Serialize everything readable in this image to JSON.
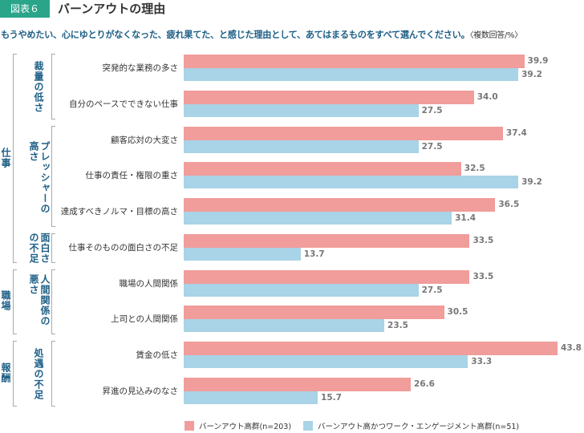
{
  "header": {
    "badge": "図表６",
    "title": "バーンアウトの理由"
  },
  "question": {
    "text": "もうやめたい、心にゆとりがなくなった、疲れ果てた、と感じた理由として、あてはまるものをすべて選んでください。",
    "note": "〈複数回答/%〉"
  },
  "colors": {
    "burnout": "#f09d9b",
    "engaged": "#a9d3e6",
    "label": "#1d5f86"
  },
  "outer_groups": [
    {
      "label": "仕事"
    },
    {
      "label": "職場"
    },
    {
      "label": "報酬"
    }
  ],
  "inner_groups": [
    {
      "columns": [
        "裁量の低さ"
      ]
    },
    {
      "columns": [
        "プレッシャーの",
        "高さ"
      ]
    },
    {
      "columns": [
        "面白さ",
        "の不足"
      ]
    },
    {
      "columns": [
        "人間関係の",
        "悪さ"
      ]
    },
    {
      "columns": [
        "処遇の不足"
      ]
    }
  ],
  "chart_data": {
    "type": "bar",
    "orientation": "horizontal",
    "xlim": [
      0,
      45
    ],
    "grid": false,
    "legend_position": "bottom",
    "categories": [
      "突発的な業務の多さ",
      "自分のペースでできない仕事",
      "顧客応対の大変さ",
      "仕事の責任・権限の重さ",
      "達成すべきノルマ・目標の高さ",
      "仕事そのものの面白さの不足",
      "職場の人間関係",
      "上司との人間関係",
      "賃金の低さ",
      "昇進の見込みのなさ"
    ],
    "series": [
      {
        "name": "バーンアウト高群(n=203)",
        "values": [
          39.9,
          34.0,
          37.4,
          32.5,
          36.5,
          33.5,
          33.5,
          30.5,
          43.8,
          26.6
        ]
      },
      {
        "name": "バーンアウト高かつワーク・エンゲージメント高群(n=51)",
        "values": [
          39.2,
          27.5,
          27.5,
          39.2,
          31.4,
          13.7,
          27.5,
          23.5,
          33.3,
          15.7
        ]
      }
    ]
  }
}
